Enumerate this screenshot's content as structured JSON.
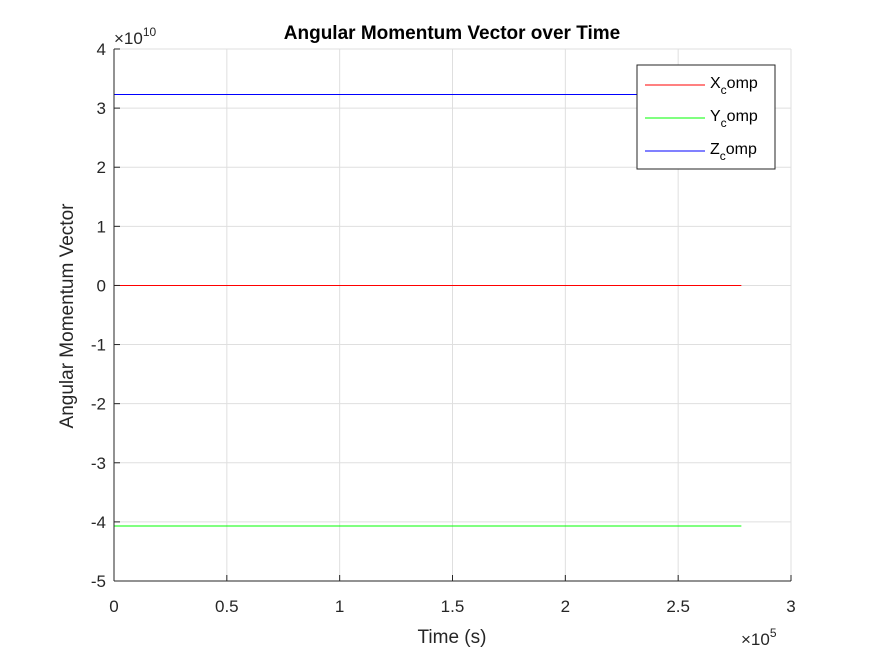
{
  "chart_data": {
    "type": "line",
    "title": "Angular Momentum Vector over Time",
    "xlabel": "Time (s)",
    "ylabel": "Angular Momentum Vector",
    "xlim": [
      0,
      300000
    ],
    "ylim": [
      -50000000000,
      40000000000
    ],
    "x_multiplier": {
      "base": "×10",
      "exponent": "5"
    },
    "y_multiplier": {
      "base": "×10",
      "exponent": "10"
    },
    "x_ticks": [
      0,
      50000,
      100000,
      150000,
      200000,
      250000,
      300000
    ],
    "x_tick_labels": [
      "0",
      "0.5",
      "1",
      "1.5",
      "2",
      "2.5",
      "3"
    ],
    "y_ticks": [
      -50000000000,
      -40000000000,
      -30000000000,
      -20000000000,
      -10000000000,
      0,
      10000000000,
      20000000000,
      30000000000,
      40000000000
    ],
    "y_tick_labels": [
      "-5",
      "-4",
      "-3",
      "-2",
      "-1",
      "0",
      "1",
      "2",
      "3",
      "4"
    ],
    "grid": true,
    "legend_position": "top-right",
    "series": [
      {
        "name_main": "X",
        "name_sub": "c",
        "name_rest": "omp",
        "color": "#ff0000",
        "x": [
          0,
          278000
        ],
        "values": [
          0,
          0
        ]
      },
      {
        "name_main": "Y",
        "name_sub": "c",
        "name_rest": "omp",
        "color": "#00ff00",
        "x": [
          0,
          278000
        ],
        "values": [
          -40700000000,
          -40700000000
        ]
      },
      {
        "name_main": "Z",
        "name_sub": "c",
        "name_rest": "omp",
        "color": "#0000ff",
        "x": [
          0,
          278000
        ],
        "values": [
          32300000000,
          32300000000
        ]
      }
    ]
  }
}
